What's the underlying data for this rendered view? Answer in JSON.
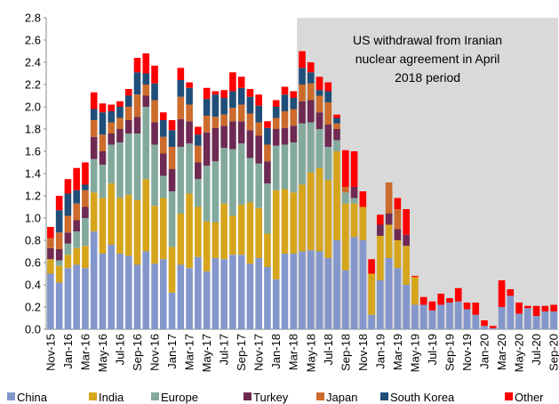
{
  "chart_data": {
    "type": "stacked_bar",
    "categories": [
      "Nov-15",
      null,
      "Jan-16",
      null,
      "Mar-16",
      null,
      "May-16",
      null,
      "Jul-16",
      null,
      "Sep-16",
      null,
      "Nov-16",
      null,
      "Jan-17",
      null,
      "Mar-17",
      null,
      "May-17",
      null,
      "Jul-17",
      null,
      "Sep-17",
      null,
      "Nov-17",
      null,
      "Jan-18",
      null,
      "Mar-18",
      null,
      "May-18",
      null,
      "Jul-18",
      null,
      "Sep-18",
      null,
      "Nov-18",
      null,
      "Jan-19",
      null,
      "Mar-19",
      null,
      "May-19",
      null,
      "Jul-19",
      null,
      "Sep-19",
      null,
      "Nov-19",
      null,
      "Jan-20",
      null,
      "Mar-20",
      null,
      "May-20",
      null,
      "Jul-20",
      null,
      "Sep-20"
    ],
    "series": [
      {
        "name": "China",
        "color": "#8497cc",
        "values": [
          0.5,
          0.42,
          0.55,
          0.58,
          0.55,
          0.88,
          0.68,
          0.76,
          0.68,
          0.66,
          0.58,
          0.7,
          0.59,
          0.63,
          0.33,
          0.58,
          0.55,
          0.65,
          0.52,
          0.64,
          0.63,
          0.67,
          0.67,
          0.59,
          0.64,
          0.56,
          0.45,
          0.68,
          0.68,
          0.7,
          0.71,
          0.7,
          0.64,
          0.8,
          0.53,
          0.83,
          0.8,
          0.13,
          0.44,
          0.64,
          0.55,
          0.4,
          0.22,
          0.22,
          0.17,
          0.22,
          0.24,
          0.25,
          0.18,
          0.13,
          0.03,
          0.01,
          0.2,
          0.3,
          0.14,
          0.19,
          0.12,
          0.16,
          0.16
        ]
      },
      {
        "name": "India",
        "color": "#d6a51c",
        "values": [
          0.13,
          0.15,
          0.12,
          0.15,
          0.2,
          0.35,
          0.5,
          0.55,
          0.5,
          0.55,
          0.58,
          0.65,
          0.52,
          0.55,
          0.41,
          0.46,
          0.67,
          0.45,
          0.45,
          0.32,
          0.5,
          0.35,
          0.45,
          0.55,
          0.45,
          0.3,
          0.8,
          0.58,
          0.55,
          0.6,
          0.7,
          0.75,
          0.7,
          0.8,
          0.6,
          0.3,
          0.3,
          0.37,
          0.4,
          0.3,
          0.25,
          0.35,
          0.25,
          0,
          0,
          0,
          0,
          0,
          0,
          0,
          0,
          0,
          0,
          0,
          0,
          0,
          0,
          0,
          0
        ]
      },
      {
        "name": "Europe",
        "color": "#82a99c",
        "values": [
          0,
          0.05,
          0.1,
          0.15,
          0.25,
          0.3,
          0.3,
          0.35,
          0.5,
          0.55,
          0.6,
          0.65,
          0.55,
          0.2,
          0.5,
          0.6,
          0.45,
          0.25,
          0.5,
          0.55,
          0.5,
          0.6,
          0.55,
          0.4,
          0.4,
          0.45,
          0.4,
          0.4,
          0.45,
          0.55,
          0.45,
          0.35,
          0.3,
          0.1,
          0.1,
          0.05,
          0,
          0,
          0,
          0,
          0,
          0,
          0,
          0,
          0,
          0,
          0,
          0,
          0,
          0,
          0,
          0,
          0,
          0,
          0,
          0,
          0,
          0,
          0
        ]
      },
      {
        "name": "Turkey",
        "color": "#6e2a52",
        "values": [
          0.1,
          0.1,
          0.1,
          0.1,
          0.1,
          0.2,
          0.12,
          0.1,
          0.12,
          0.12,
          0.15,
          0.1,
          0.2,
          0.2,
          0.2,
          0.25,
          0.2,
          0.15,
          0.3,
          0.3,
          0.2,
          0.25,
          0.2,
          0.25,
          0.25,
          0.2,
          0.15,
          0.15,
          0.15,
          0.2,
          0.2,
          0.15,
          0.2,
          0.1,
          0,
          0.1,
          0,
          0,
          0.1,
          0.1,
          0.1,
          0.1,
          0,
          0,
          0,
          0,
          0,
          0,
          0,
          0,
          0,
          0,
          0,
          0,
          0,
          0,
          0,
          0,
          0
        ]
      },
      {
        "name": "Japan",
        "color": "#cc6b2c",
        "values": [
          0.09,
          0.15,
          0.15,
          0.15,
          0.15,
          0.15,
          0.15,
          0.1,
          0.1,
          0.12,
          0.2,
          0.1,
          0.2,
          0.15,
          0.2,
          0.2,
          0.15,
          0.15,
          0.15,
          0.1,
          0.1,
          0.12,
          0.15,
          0.15,
          0.12,
          0.15,
          0.1,
          0.15,
          0.15,
          0.15,
          0.15,
          0.15,
          0.2,
          0.05,
          0.05,
          0,
          0,
          0,
          0,
          0.28,
          0.18,
          0,
          0,
          0,
          0,
          0,
          0,
          0,
          0,
          0,
          0,
          0,
          0,
          0,
          0,
          0,
          0,
          0,
          0
        ]
      },
      {
        "name": "South Korea",
        "color": "#1f4e79",
        "values": [
          0,
          0.2,
          0.2,
          0.12,
          0.05,
          0.1,
          0.2,
          0.1,
          0.1,
          0.1,
          0.2,
          0.1,
          0.15,
          0.15,
          0.15,
          0.15,
          0.15,
          0.1,
          0.15,
          0.2,
          0.15,
          0.15,
          0.15,
          0.15,
          0.15,
          0.15,
          0.1,
          0.15,
          0.1,
          0.15,
          0.1,
          0.05,
          0.1,
          0.05,
          0,
          0,
          0,
          0,
          0,
          0,
          0,
          0,
          0,
          0,
          0,
          0,
          0,
          0,
          0,
          0,
          0,
          0,
          0,
          0,
          0,
          0,
          0,
          0,
          0
        ]
      },
      {
        "name": "Other",
        "color": "#ff0000",
        "values": [
          0.1,
          0.13,
          0.13,
          0.2,
          0.2,
          0.15,
          0.08,
          0.06,
          0.05,
          0.06,
          0.13,
          0.18,
          0.16,
          0.07,
          0.09,
          0.11,
          0.05,
          0.07,
          0.1,
          0.03,
          0.07,
          0.17,
          0.1,
          0.07,
          0.1,
          0.06,
          0.06,
          0.07,
          0.06,
          0.15,
          0.09,
          0.12,
          0.08,
          0.03,
          0.33,
          0.32,
          0.14,
          0.13,
          0.09,
          0,
          0.1,
          0.23,
          0.01,
          0.07,
          0.08,
          0.1,
          0.04,
          0.12,
          0.06,
          0.11,
          0.05,
          0.02,
          0.24,
          0.06,
          0.1,
          0.02,
          0.09,
          0.05,
          0.06
        ]
      }
    ],
    "ylim": [
      0,
      2.8
    ],
    "yticks": [
      {
        "value": 0,
        "label": "0.0"
      },
      0.2,
      0.4,
      0.6,
      0.8,
      {
        "value": 1,
        "label": "1.0"
      },
      1.2,
      1.4,
      1.6,
      1.8,
      {
        "value": 2,
        "label": "2.0"
      },
      2.2,
      2.4,
      2.6,
      2.8
    ],
    "annotation": {
      "lines": [
        "US withdrawal from Iranian",
        "nuclear agreement in April",
        "2018 period"
      ],
      "start": 29,
      "color": "#d9d9d9"
    },
    "legend": "bottom"
  }
}
